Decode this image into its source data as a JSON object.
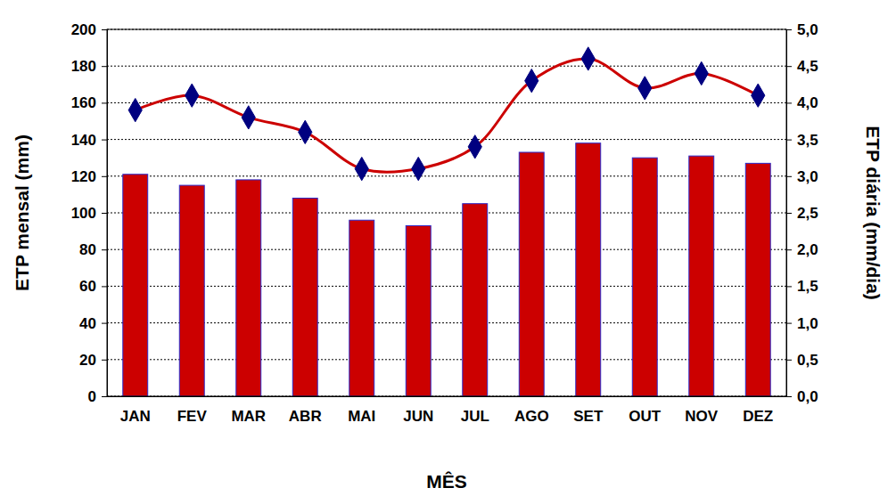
{
  "chart_data": {
    "type": "bar",
    "xlabel": "MÊS",
    "ylabel": "ETP mensal (mm)",
    "y2label": "ETP diária (mm/dia)",
    "categories": [
      "JAN",
      "FEV",
      "MAR",
      "ABR",
      "MAI",
      "JUN",
      "JUL",
      "AGO",
      "SET",
      "OUT",
      "NOV",
      "DEZ"
    ],
    "series": [
      {
        "type": "bar",
        "color": "#cc0000",
        "values": [
          121,
          115,
          118,
          108,
          96,
          93,
          105,
          133,
          138,
          130,
          131,
          127
        ]
      },
      {
        "type": "line",
        "axis": "y2",
        "color": "#cc0000",
        "marker": "diamond",
        "line_style": "solid",
        "values": [
          3.9,
          4.1,
          3.8,
          3.6,
          3.1,
          3.1,
          3.4,
          4.3,
          4.6,
          4.2,
          4.4,
          4.1
        ]
      }
    ],
    "ylim": [
      0,
      200
    ],
    "yticks": [
      0,
      20,
      40,
      60,
      80,
      100,
      120,
      140,
      160,
      180,
      200
    ],
    "y2lim": [
      0,
      5
    ],
    "y2ticks": [
      {
        "value": 0,
        "label": "0,0"
      },
      {
        "value": 0.5,
        "label": "0,5"
      },
      {
        "value": 1,
        "label": "1,0"
      },
      {
        "value": 1.5,
        "label": "1,5"
      },
      {
        "value": 2,
        "label": "2,0"
      },
      {
        "value": 2.5,
        "label": "2,5"
      },
      {
        "value": 3,
        "label": "3,0"
      },
      {
        "value": 3.5,
        "label": "3,5"
      },
      {
        "value": 4,
        "label": "4,0"
      },
      {
        "value": 4.5,
        "label": "4,5"
      },
      {
        "value": 5,
        "label": "5,0"
      }
    ],
    "grid": true
  }
}
